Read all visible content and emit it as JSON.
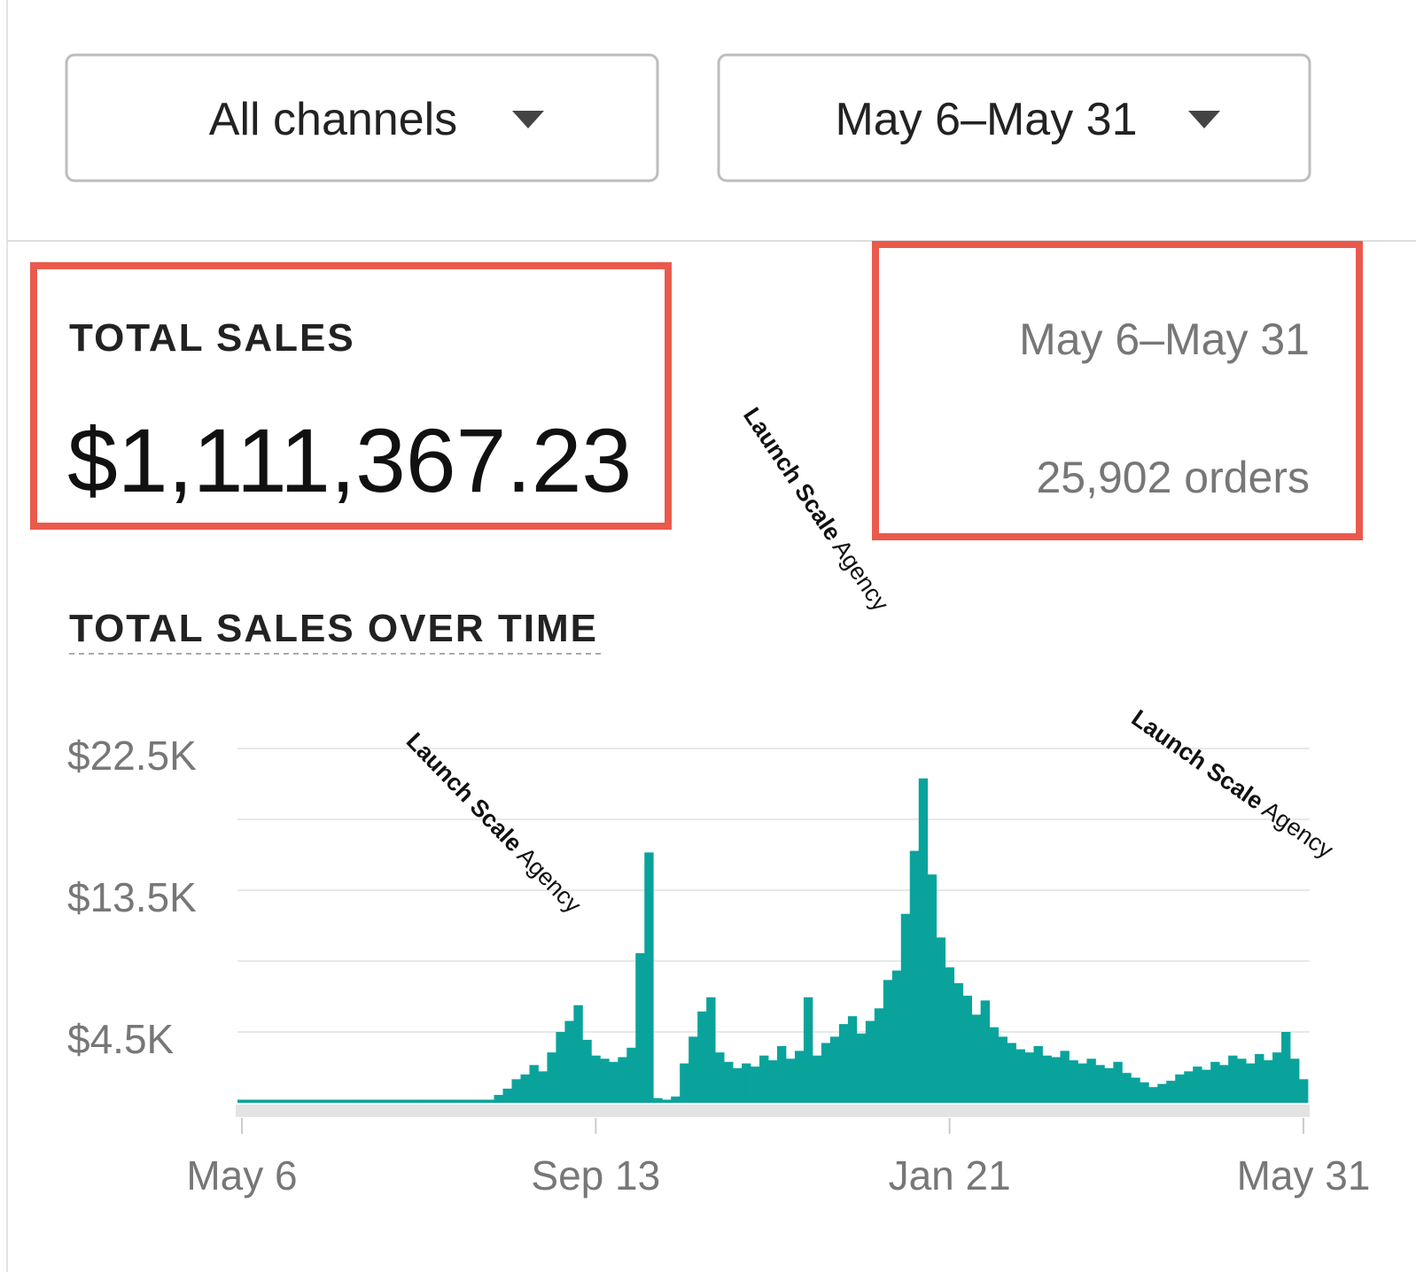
{
  "filters": {
    "channel": "All channels",
    "date_range": "May 6–May 31"
  },
  "summary": {
    "label": "TOTAL SALES",
    "value": "$1,111,367.23",
    "date_range": "May 6–May 31",
    "orders": "25,902 orders"
  },
  "watermarks": [
    {
      "strong": "Launch Scale",
      "light": "Agency"
    },
    {
      "strong": "Launch Scale",
      "light": "Agency"
    },
    {
      "strong": "Launch Scale",
      "light": "Agency"
    }
  ],
  "chart_data": {
    "type": "bar",
    "title": "TOTAL SALES OVER TIME",
    "categories": [
      "May 6",
      null,
      null,
      null,
      null,
      null,
      null,
      null,
      null,
      null,
      null,
      null,
      null,
      null,
      null,
      null,
      null,
      null,
      null,
      null,
      null,
      null,
      null,
      null,
      null,
      null,
      null,
      null,
      null,
      null,
      null,
      null,
      null,
      null,
      null,
      null,
      null,
      null,
      null,
      null,
      "Sep 13",
      null,
      null,
      null,
      null,
      null,
      null,
      null,
      null,
      null,
      null,
      null,
      null,
      null,
      null,
      null,
      null,
      null,
      null,
      null,
      null,
      null,
      null,
      null,
      null,
      null,
      null,
      null,
      null,
      null,
      null,
      null,
      null,
      null,
      null,
      null,
      null,
      null,
      null,
      null,
      "Jan 21",
      null,
      null,
      null,
      null,
      null,
      null,
      null,
      null,
      null,
      null,
      null,
      null,
      null,
      null,
      null,
      null,
      null,
      null,
      null,
      null,
      null,
      null,
      null,
      null,
      null,
      null,
      null,
      null,
      null,
      null,
      null,
      null,
      null,
      null,
      null,
      null,
      null,
      null,
      null,
      "May 31"
    ],
    "values": [
      200,
      200,
      200,
      200,
      200,
      200,
      200,
      200,
      200,
      200,
      200,
      200,
      200,
      200,
      200,
      200,
      200,
      200,
      200,
      200,
      200,
      200,
      200,
      200,
      200,
      200,
      200,
      200,
      200,
      500,
      900,
      1500,
      1800,
      2400,
      2000,
      3200,
      4500,
      5200,
      6200,
      4000,
      3000,
      2800,
      2600,
      2900,
      3500,
      9500,
      15900,
      300,
      200,
      400,
      2500,
      4200,
      5800,
      6700,
      3200,
      2600,
      2200,
      2500,
      2300,
      3000,
      2700,
      3600,
      2800,
      3300,
      6700,
      3000,
      3800,
      4200,
      5000,
      5500,
      4400,
      5200,
      6000,
      7800,
      8400,
      12000,
      16000,
      20600,
      14500,
      10500,
      8600,
      7600,
      6800,
      5600,
      6500,
      4800,
      4200,
      3800,
      3400,
      3200,
      3600,
      3000,
      2900,
      3300,
      2700,
      2500,
      2800,
      2400,
      2200,
      2600,
      1900,
      1600,
      1300,
      1000,
      1200,
      1400,
      1800,
      2000,
      2300,
      2100,
      2600,
      2400,
      3000,
      2800,
      2500,
      3100,
      2700,
      3200,
      4500,
      2800,
      1500
    ],
    "color": "#0aa39c",
    "ylim": [
      0,
      22500
    ],
    "yticks": [
      {
        "value": 4500,
        "label": "$4.5K"
      },
      {
        "value": 13500,
        "label": "$13.5K"
      },
      {
        "value": 22500,
        "label": "$22.5K"
      }
    ],
    "minor_yticks": [
      9000,
      18000
    ],
    "grid": true
  }
}
